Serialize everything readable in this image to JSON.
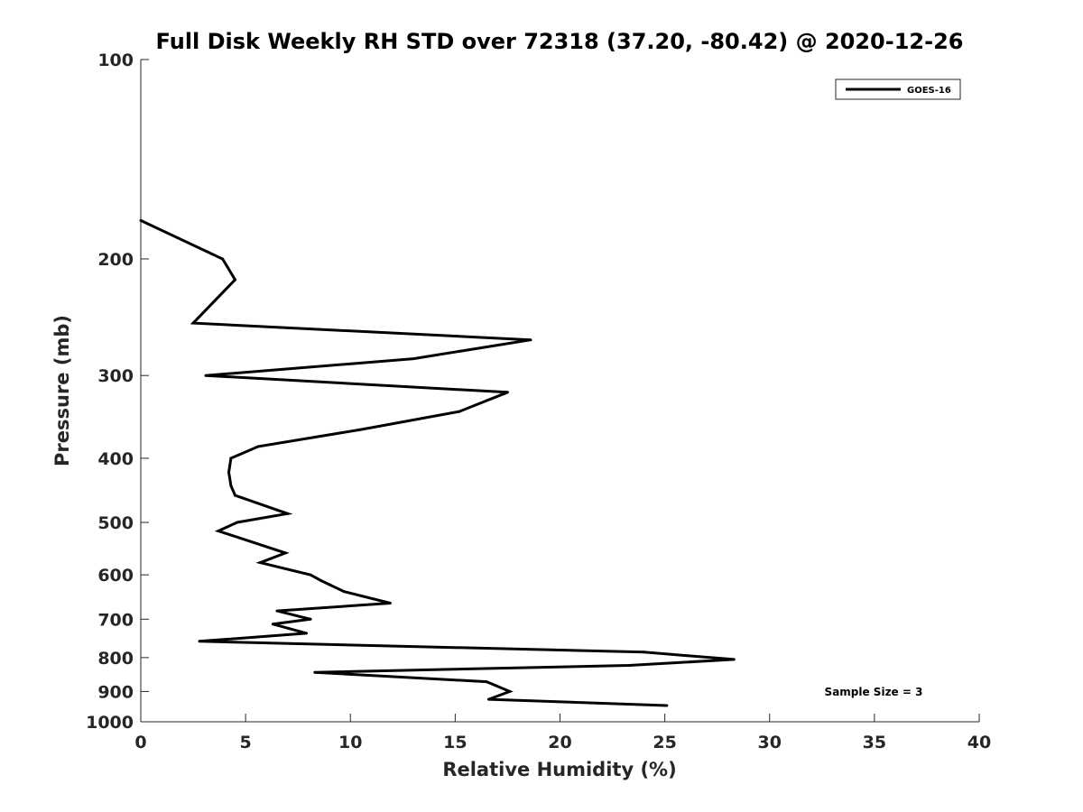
{
  "chart_data": {
    "type": "line",
    "title": "Full Disk Weekly RH STD over 72318 (37.20, -80.42) @ 2020-12-26",
    "xlabel": "Relative Humidity (%)",
    "ylabel": "Pressure (mb)",
    "xlim": [
      0,
      40
    ],
    "ylim": [
      100,
      1000
    ],
    "yscale": "log",
    "yreversed": true,
    "grid": false,
    "legend_position": "top-right",
    "x_ticks": [
      "0",
      "5",
      "10",
      "15",
      "20",
      "25",
      "30",
      "35",
      "40"
    ],
    "y_ticks": [
      "100",
      "200",
      "300",
      "400",
      "500",
      "600",
      "700",
      "800",
      "900",
      "1000"
    ],
    "annotation": "Sample Size = 3",
    "series": [
      {
        "name": "GOES-16",
        "color": "#000000",
        "points": [
          {
            "x": 0.0,
            "y": 175
          },
          {
            "x": 3.9,
            "y": 200
          },
          {
            "x": 4.5,
            "y": 215
          },
          {
            "x": 2.5,
            "y": 250
          },
          {
            "x": 18.6,
            "y": 265
          },
          {
            "x": 13.0,
            "y": 283
          },
          {
            "x": 3.1,
            "y": 300
          },
          {
            "x": 17.5,
            "y": 318
          },
          {
            "x": 15.2,
            "y": 340
          },
          {
            "x": 10.5,
            "y": 362
          },
          {
            "x": 5.6,
            "y": 384
          },
          {
            "x": 4.3,
            "y": 400
          },
          {
            "x": 4.2,
            "y": 420
          },
          {
            "x": 4.3,
            "y": 440
          },
          {
            "x": 4.5,
            "y": 455
          },
          {
            "x": 7.0,
            "y": 485
          },
          {
            "x": 4.6,
            "y": 500
          },
          {
            "x": 3.7,
            "y": 515
          },
          {
            "x": 6.9,
            "y": 556
          },
          {
            "x": 5.7,
            "y": 575
          },
          {
            "x": 8.1,
            "y": 600
          },
          {
            "x": 8.6,
            "y": 612
          },
          {
            "x": 9.7,
            "y": 636
          },
          {
            "x": 11.9,
            "y": 662
          },
          {
            "x": 6.5,
            "y": 680
          },
          {
            "x": 8.1,
            "y": 700
          },
          {
            "x": 6.3,
            "y": 712
          },
          {
            "x": 7.9,
            "y": 735
          },
          {
            "x": 2.8,
            "y": 756
          },
          {
            "x": 24.0,
            "y": 785
          },
          {
            "x": 28.3,
            "y": 805
          },
          {
            "x": 23.3,
            "y": 822
          },
          {
            "x": 8.3,
            "y": 842
          },
          {
            "x": 16.5,
            "y": 870
          },
          {
            "x": 17.6,
            "y": 900
          },
          {
            "x": 16.6,
            "y": 925
          },
          {
            "x": 25.1,
            "y": 945
          }
        ]
      }
    ]
  }
}
